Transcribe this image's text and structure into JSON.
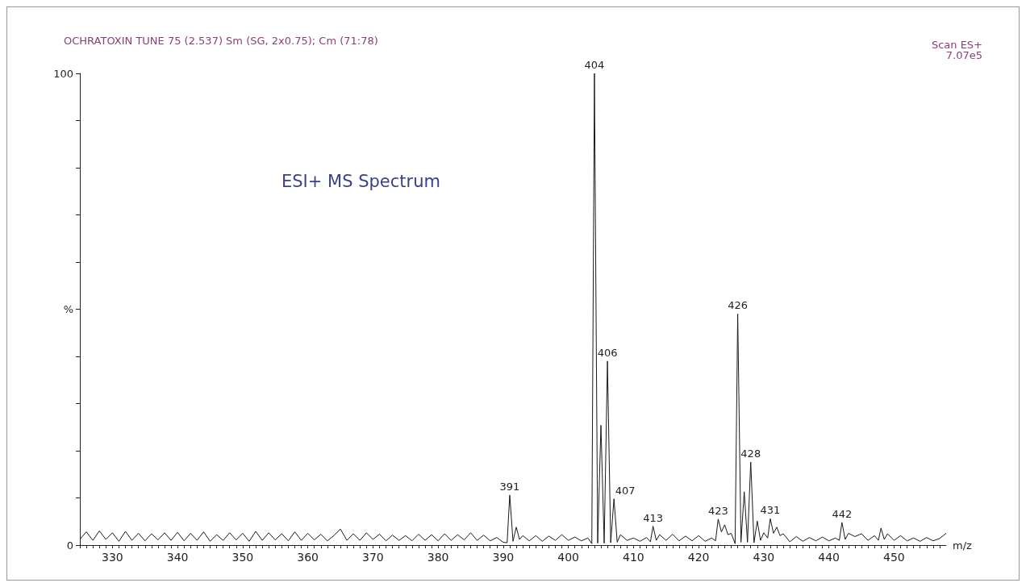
{
  "chart_data": {
    "type": "line",
    "title": "OCHRATOXIN TUNE 75 (2.537) Sm (SG, 2x0.75); Cm (71:78)",
    "xlabel": "m/z",
    "annotations": [
      "Scan ES+\n7.07e5",
      "ESI+ MS Spectrum",
      {
        "text": "391",
        "x": 391,
        "y": 10.6
      },
      {
        "text": "404",
        "x": 404,
        "y": 100
      },
      {
        "text": "406",
        "x": 406,
        "y": 39
      },
      {
        "text": "407",
        "x": 407,
        "y": 9.8
      },
      {
        "text": "413",
        "x": 413,
        "y": 4
      },
      {
        "text": "423",
        "x": 423,
        "y": 5.5
      },
      {
        "text": "426",
        "x": 426,
        "y": 49
      },
      {
        "text": "428",
        "x": 428,
        "y": 17.6
      },
      {
        "text": "431",
        "x": 431,
        "y": 5.6
      },
      {
        "text": "442",
        "x": 442,
        "y": 4.8
      }
    ],
    "xlim": [
      325,
      458
    ],
    "xticks": [
      {
        "value": 325,
        "label": null
      },
      {
        "value": 326,
        "label": null
      },
      {
        "value": 327,
        "label": null
      },
      {
        "value": 328,
        "label": null
      },
      {
        "value": 329,
        "label": null
      },
      330,
      {
        "value": 331,
        "label": null
      },
      {
        "value": 332,
        "label": null
      },
      {
        "value": 333,
        "label": null
      },
      {
        "value": 334,
        "label": null
      },
      {
        "value": 335,
        "label": null
      },
      {
        "value": 336,
        "label": null
      },
      {
        "value": 337,
        "label": null
      },
      {
        "value": 338,
        "label": null
      },
      {
        "value": 339,
        "label": null
      },
      340,
      {
        "value": 341,
        "label": null
      },
      {
        "value": 342,
        "label": null
      },
      {
        "value": 343,
        "label": null
      },
      {
        "value": 344,
        "label": null
      },
      {
        "value": 345,
        "label": null
      },
      {
        "value": 346,
        "label": null
      },
      {
        "value": 347,
        "label": null
      },
      {
        "value": 348,
        "label": null
      },
      {
        "value": 349,
        "label": null
      },
      350,
      {
        "value": 351,
        "label": null
      },
      {
        "value": 352,
        "label": null
      },
      {
        "value": 353,
        "label": null
      },
      {
        "value": 354,
        "label": null
      },
      {
        "value": 355,
        "label": null
      },
      {
        "value": 356,
        "label": null
      },
      {
        "value": 357,
        "label": null
      },
      {
        "value": 358,
        "label": null
      },
      {
        "value": 359,
        "label": null
      },
      360,
      {
        "value": 361,
        "label": null
      },
      {
        "value": 362,
        "label": null
      },
      {
        "value": 363,
        "label": null
      },
      {
        "value": 364,
        "label": null
      },
      {
        "value": 365,
        "label": null
      },
      {
        "value": 366,
        "label": null
      },
      {
        "value": 367,
        "label": null
      },
      {
        "value": 368,
        "label": null
      },
      {
        "value": 369,
        "label": null
      },
      370,
      {
        "value": 371,
        "label": null
      },
      {
        "value": 372,
        "label": null
      },
      {
        "value": 373,
        "label": null
      },
      {
        "value": 374,
        "label": null
      },
      {
        "value": 375,
        "label": null
      },
      {
        "value": 376,
        "label": null
      },
      {
        "value": 377,
        "label": null
      },
      {
        "value": 378,
        "label": null
      },
      {
        "value": 379,
        "label": null
      },
      380,
      {
        "value": 381,
        "label": null
      },
      {
        "value": 382,
        "label": null
      },
      {
        "value": 383,
        "label": null
      },
      {
        "value": 384,
        "label": null
      },
      {
        "value": 385,
        "label": null
      },
      {
        "value": 386,
        "label": null
      },
      {
        "value": 387,
        "label": null
      },
      {
        "value": 388,
        "label": null
      },
      {
        "value": 389,
        "label": null
      },
      390,
      {
        "value": 391,
        "label": null
      },
      {
        "value": 392,
        "label": null
      },
      {
        "value": 393,
        "label": null
      },
      {
        "value": 394,
        "label": null
      },
      {
        "value": 395,
        "label": null
      },
      {
        "value": 396,
        "label": null
      },
      {
        "value": 397,
        "label": null
      },
      {
        "value": 398,
        "label": null
      },
      {
        "value": 399,
        "label": null
      },
      400,
      {
        "value": 401,
        "label": null
      },
      {
        "value": 402,
        "label": null
      },
      {
        "value": 403,
        "label": null
      },
      {
        "value": 404,
        "label": null
      },
      {
        "value": 405,
        "label": null
      },
      {
        "value": 406,
        "label": null
      },
      {
        "value": 407,
        "label": null
      },
      {
        "value": 408,
        "label": null
      },
      {
        "value": 409,
        "label": null
      },
      410,
      {
        "value": 411,
        "label": null
      },
      {
        "value": 412,
        "label": null
      },
      {
        "value": 413,
        "label": null
      },
      {
        "value": 414,
        "label": null
      },
      {
        "value": 415,
        "label": null
      },
      {
        "value": 416,
        "label": null
      },
      {
        "value": 417,
        "label": null
      },
      {
        "value": 418,
        "label": null
      },
      {
        "value": 419,
        "label": null
      },
      420,
      {
        "value": 421,
        "label": null
      },
      {
        "value": 422,
        "label": null
      },
      {
        "value": 423,
        "label": null
      },
      {
        "value": 424,
        "label": null
      },
      {
        "value": 425,
        "label": null
      },
      {
        "value": 426,
        "label": null
      },
      {
        "value": 427,
        "label": null
      },
      {
        "value": 428,
        "label": null
      },
      {
        "value": 429,
        "label": null
      },
      430,
      {
        "value": 431,
        "label": null
      },
      {
        "value": 432,
        "label": null
      },
      {
        "value": 433,
        "label": null
      },
      {
        "value": 434,
        "label": null
      },
      {
        "value": 435,
        "label": null
      },
      {
        "value": 436,
        "label": null
      },
      {
        "value": 437,
        "label": null
      },
      {
        "value": 438,
        "label": null
      },
      {
        "value": 439,
        "label": null
      },
      440,
      {
        "value": 441,
        "label": null
      },
      {
        "value": 442,
        "label": null
      },
      {
        "value": 443,
        "label": null
      },
      {
        "value": 444,
        "label": null
      },
      {
        "value": 445,
        "label": null
      },
      {
        "value": 446,
        "label": null
      },
      {
        "value": 447,
        "label": null
      },
      {
        "value": 448,
        "label": null
      },
      {
        "value": 449,
        "label": null
      },
      450,
      {
        "value": 451,
        "label": null
      },
      {
        "value": 452,
        "label": null
      },
      {
        "value": 453,
        "label": null
      },
      {
        "value": 454,
        "label": null
      },
      {
        "value": 455,
        "label": null
      },
      {
        "value": 456,
        "label": null
      },
      {
        "value": 457,
        "label": null
      }
    ],
    "ylim": [
      0,
      100
    ],
    "yticks": [
      0,
      {
        "value": 10,
        "label": null
      },
      {
        "value": 20,
        "label": null
      },
      {
        "value": 30,
        "label": null
      },
      {
        "value": 40,
        "label": null
      },
      {
        "value": 50,
        "label": "%"
      },
      {
        "value": 60,
        "label": null
      },
      {
        "value": 70,
        "label": null
      },
      {
        "value": 80,
        "label": null
      },
      {
        "value": 90,
        "label": null
      },
      100
    ],
    "marker": "none",
    "series": [
      {
        "color": "#1a1a1a",
        "x": [
          325,
          326,
          327,
          328,
          329,
          330,
          331,
          332,
          333,
          334,
          335,
          336,
          337,
          338,
          339,
          340,
          341,
          342,
          343,
          344,
          345,
          346,
          347,
          348,
          349,
          350,
          351,
          352,
          353,
          354,
          355,
          356,
          357,
          358,
          359,
          360,
          361,
          362,
          363,
          364,
          365,
          366,
          367,
          368,
          369,
          370,
          371,
          372,
          373,
          374,
          375,
          376,
          377,
          378,
          379,
          380,
          381,
          382,
          383,
          384,
          385,
          386,
          387,
          388,
          389,
          390,
          390.6,
          391,
          391.5,
          392,
          392.5,
          393,
          394,
          395,
          396,
          397,
          398,
          399,
          400,
          401,
          402,
          403,
          403.6,
          404,
          404.5,
          405,
          405.5,
          406,
          406.5,
          407,
          407.5,
          408,
          409,
          410,
          411,
          412,
          412.6,
          413,
          413.5,
          414,
          415,
          416,
          417,
          418,
          419,
          420,
          421,
          422,
          422.6,
          423,
          423.5,
          424,
          424.5,
          425,
          425.6,
          426,
          426.5,
          427,
          427.5,
          428,
          428.5,
          429,
          429.5,
          430,
          430.6,
          431,
          431.5,
          432,
          432.5,
          433,
          434,
          435,
          436,
          437,
          438,
          439,
          440,
          441,
          441.6,
          442,
          442.5,
          443,
          444,
          445,
          446,
          447,
          447.6,
          448,
          448.5,
          449,
          450,
          451,
          452,
          453,
          454,
          455,
          456,
          457,
          458
        ],
        "values": [
          1.2,
          2.8,
          1,
          3,
          1.2,
          2.6,
          0.8,
          2.9,
          1,
          2.5,
          0.9,
          2.4,
          1.1,
          2.6,
          1,
          2.7,
          0.9,
          2.5,
          1,
          2.8,
          0.8,
          2.2,
          1,
          2.6,
          1.1,
          2.5,
          0.8,
          2.9,
          1,
          2.6,
          1.1,
          2.4,
          0.9,
          2.8,
          1,
          2.5,
          1.1,
          2.3,
          0.9,
          2,
          3.4,
          1,
          2.4,
          1,
          2.6,
          1.2,
          2.3,
          0.9,
          2.1,
          1,
          2,
          0.9,
          2.3,
          1,
          2.2,
          0.9,
          2.4,
          1,
          2.2,
          1.1,
          2.6,
          1,
          2.1,
          0.9,
          1.6,
          0.6,
          0.5,
          10.6,
          0.8,
          3.8,
          1.2,
          2,
          0.9,
          2,
          0.8,
          1.9,
          1,
          2.2,
          1,
          1.7,
          0.9,
          1.5,
          0.3,
          100,
          0.4,
          25.4,
          0.4,
          39,
          0.5,
          9.8,
          0.6,
          2.2,
          1,
          1.5,
          0.8,
          1.6,
          0.7,
          4,
          1,
          2.2,
          1,
          2.3,
          0.9,
          1.9,
          0.9,
          2,
          0.8,
          1.5,
          0.9,
          5.5,
          2.8,
          4.3,
          2.2,
          2.5,
          0.3,
          49,
          0.6,
          11.3,
          0.6,
          17.6,
          0.5,
          5.1,
          1,
          2.6,
          1.5,
          5.6,
          2.5,
          3.8,
          2,
          2.4,
          0.7,
          1.8,
          0.8,
          1.6,
          0.9,
          1.7,
          0.9,
          1.5,
          1,
          4.8,
          1.2,
          2.5,
          1.8,
          2.4,
          1,
          2,
          1,
          3.6,
          1.2,
          2.4,
          1,
          2,
          0.9,
          1.5,
          0.8,
          1.6,
          0.9,
          1.4,
          2.5
        ]
      }
    ]
  }
}
